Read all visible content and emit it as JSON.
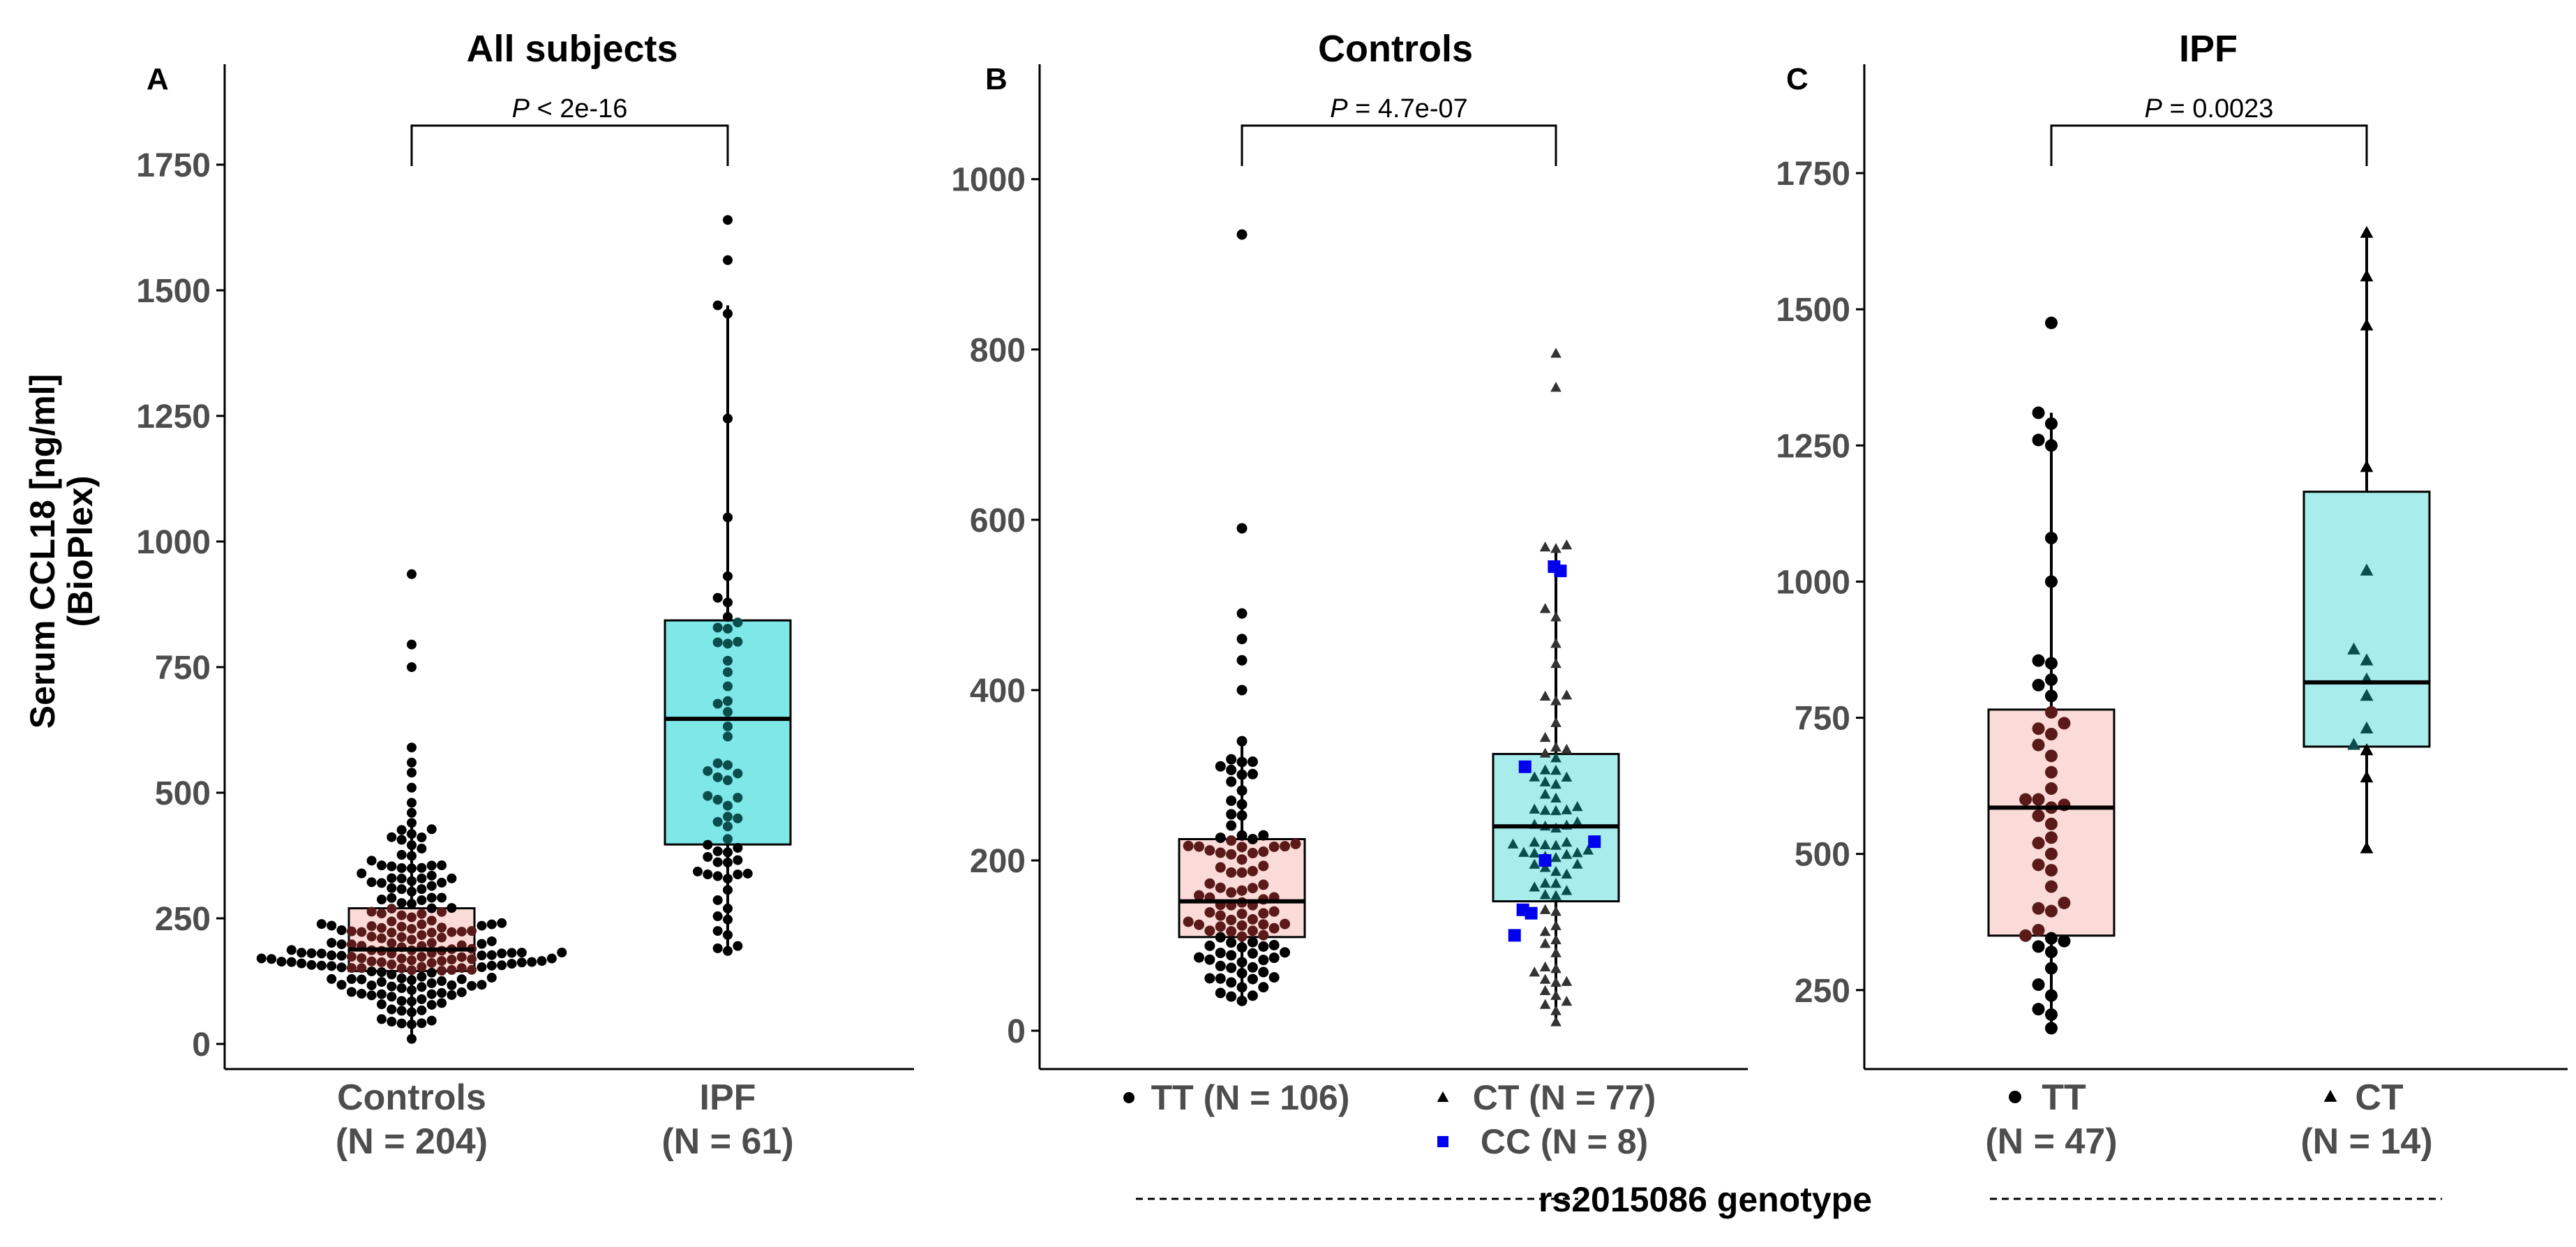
{
  "y_axis_title": [
    "Serum CCL18 [ng/ml]",
    "(BioPlex)"
  ],
  "genotype_footer": "rs2015086 genotype",
  "chart_data": [
    {
      "type": "box",
      "panel": "A",
      "title": "All subjects",
      "ylim": [
        -50,
        1950
      ],
      "yticks": [
        0,
        250,
        500,
        750,
        1000,
        1250,
        1500,
        1750
      ],
      "pvalue": {
        "prefix": "P",
        "text": " < 2e-16"
      },
      "groups": [
        {
          "label": "Controls",
          "n_label": "(N = 204)",
          "fill": "#fadbd8",
          "point_color": "#000000",
          "q1": 145,
          "median": 188,
          "q3": 270,
          "whisker_low": 10,
          "whisker_high": 440,
          "outliers": [
            460,
            480,
            510,
            540,
            560,
            590,
            750,
            795,
            935
          ],
          "n_points": 204
        },
        {
          "label": "IPF",
          "n_label": "(N = 61)",
          "fill": "#7ee8e8",
          "point_color": "#000000",
          "q1": 397,
          "median": 647,
          "q3": 843,
          "whisker_low": 185,
          "whisker_high": 1470,
          "outliers": [
            1560,
            1640
          ],
          "n_points": 61
        }
      ]
    },
    {
      "type": "box",
      "panel": "B",
      "title": "Controls",
      "ylim": [
        -45,
        1135
      ],
      "yticks": [
        0,
        200,
        400,
        600,
        800,
        1000
      ],
      "pvalue": {
        "prefix": "P",
        "text": " = 4.7e-07"
      },
      "groups": [
        {
          "label": "TT (N = 106)",
          "marker": "circle",
          "fill": "#fadbd8",
          "point_color": "#000000",
          "q1": 110,
          "median": 152,
          "q3": 225,
          "whisker_low": 35,
          "whisker_high": 340,
          "outliers": [
            400,
            435,
            460,
            490,
            590,
            935
          ],
          "n_points": 106
        },
        {
          "label": "CT (N = 77)",
          "marker": "triangle",
          "fill": "#a8ecec",
          "point_color": "#333333",
          "q1": 152,
          "median": 240,
          "q3": 325,
          "whisker_low": 10,
          "whisker_high": 570,
          "outliers": [
            755,
            795
          ],
          "n_points": 77
        }
      ],
      "extra_series": {
        "label": "CC (N = 8)",
        "marker": "square",
        "color": "#0000ee",
        "values": [
          112,
          138,
          142,
          200,
          222,
          310,
          540,
          545
        ]
      }
    },
    {
      "type": "box",
      "panel": "C",
      "title": "IPF",
      "ylim": [
        105,
        1950
      ],
      "yticks": [
        250,
        500,
        750,
        1000,
        1250,
        1500,
        1750
      ],
      "pvalue": {
        "prefix": "P",
        "text": " = 0.0023"
      },
      "groups": [
        {
          "label": "TT",
          "n_label": "(N = 47)",
          "marker": "circle",
          "fill": "#fadbd8",
          "point_color": "#000000",
          "q1": 350,
          "median": 585,
          "q3": 765,
          "whisker_low": 180,
          "whisker_high": 1310,
          "outliers": [
            1475
          ],
          "values": [
            180,
            205,
            215,
            240,
            260,
            290,
            320,
            330,
            340,
            345,
            350,
            360,
            395,
            400,
            410,
            440,
            470,
            480,
            500,
            520,
            530,
            555,
            585,
            590,
            600,
            620,
            650,
            680,
            700,
            720,
            730,
            740,
            760,
            790,
            810,
            820,
            850,
            855,
            1000,
            1080,
            1250,
            1260,
            1290,
            1310,
            1475,
            570,
            600
          ]
        },
        {
          "label": "CT",
          "n_label": "(N = 14)",
          "marker": "triangle",
          "fill": "#a8ecec",
          "point_color": "#000000",
          "q1": 697,
          "median": 815,
          "q3": 1165,
          "whisker_low": 510,
          "whisker_high": 1640,
          "outliers": [],
          "values": [
            510,
            640,
            690,
            730,
            790,
            855,
            875,
            1020,
            1210,
            1470,
            1560,
            1640,
            700,
            820
          ]
        }
      ]
    }
  ]
}
